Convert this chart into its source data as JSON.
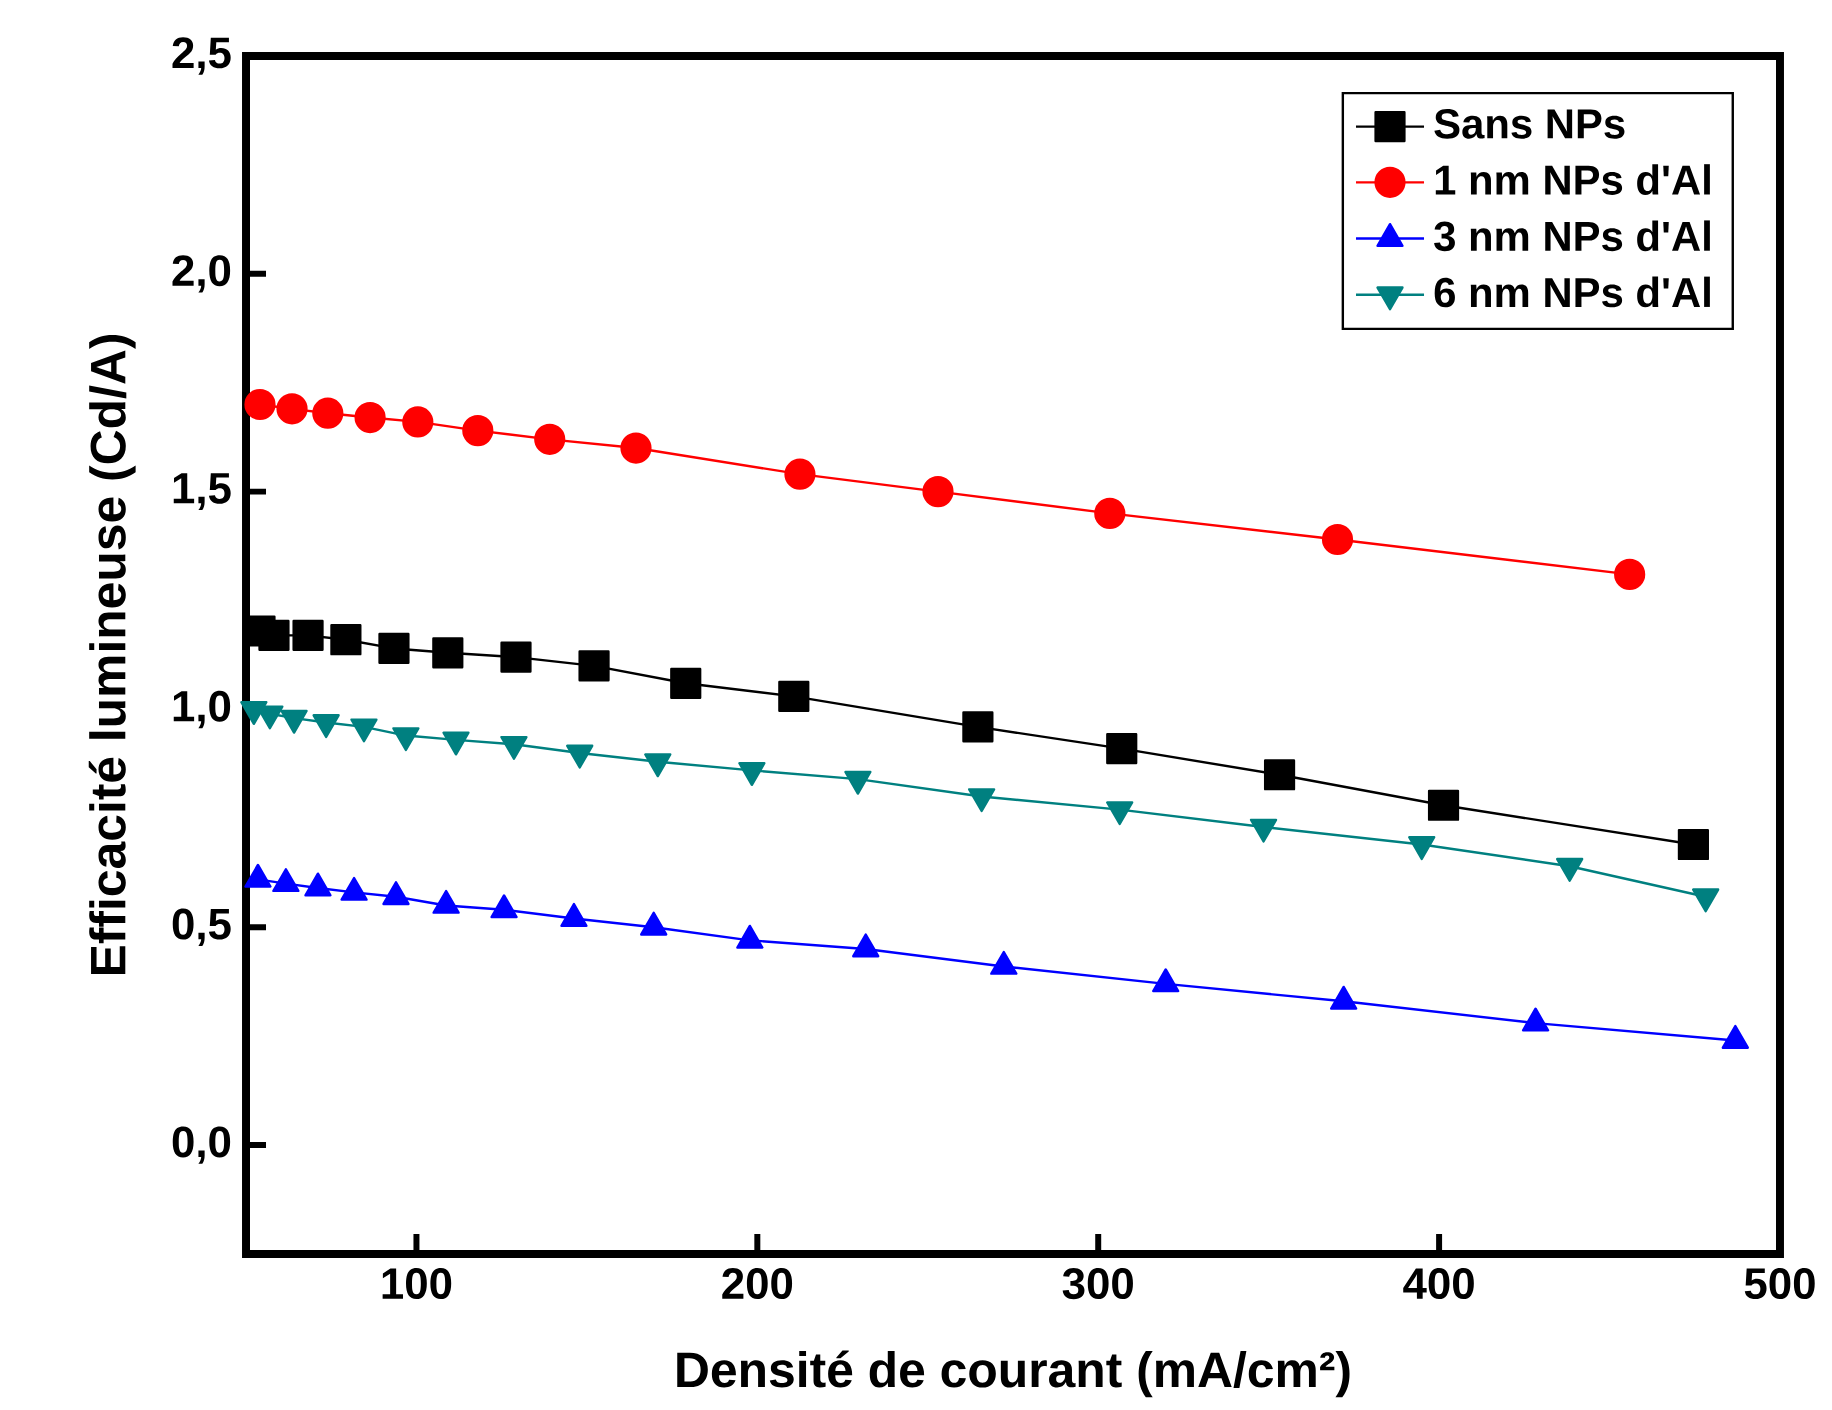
{
  "chart_data": {
    "type": "line",
    "xlabel": "Densité de courant (mA/cm²)",
    "ylabel": "Efficacité lumineuse (Cd/A)",
    "xlim": [
      50,
      500
    ],
    "xticks": [
      100,
      200,
      300,
      400,
      500
    ],
    "ylim": [
      -0.25,
      2.5
    ],
    "yticks": [
      {
        "value": 0,
        "label": "0,0"
      },
      {
        "value": 0.5,
        "label": "0,5"
      },
      {
        "value": 1.0,
        "label": "1,0"
      },
      {
        "value": 1.5,
        "label": "1,5"
      },
      {
        "value": 2.0,
        "label": "2,0"
      },
      {
        "value": 2.5,
        "label": "2,5"
      }
    ],
    "grid": false,
    "legend": "top right",
    "series": [
      {
        "name": "Sans NPs",
        "color": "#000000",
        "marker": "square",
        "x": [
          54.1,
          58.2,
          68.2,
          79.3,
          93.4,
          109.2,
          129.2,
          152.1,
          179.0,
          210.7,
          264.7,
          306.9,
          353.2,
          401.3,
          474.6
        ],
        "values": [
          1.18,
          1.17,
          1.17,
          1.16,
          1.14,
          1.13,
          1.12,
          1.1,
          1.06,
          1.03,
          0.96,
          0.91,
          0.85,
          0.78,
          0.69
        ]
      },
      {
        "name": "1 nm NPs d'Al",
        "color": "#ff0000",
        "marker": "circle",
        "x": [
          54.1,
          63.5,
          74.0,
          86.4,
          100.4,
          118.0,
          139.1,
          164.4,
          212.5,
          253.0,
          303.4,
          370.2,
          455.9
        ],
        "values": [
          1.7,
          1.69,
          1.68,
          1.67,
          1.66,
          1.64,
          1.62,
          1.6,
          1.54,
          1.5,
          1.45,
          1.39,
          1.31
        ]
      },
      {
        "name": "3 nm NPs d'Al",
        "color": "#0000ff",
        "marker": "triangle",
        "x": [
          53.5,
          61.7,
          71.1,
          81.7,
          94.0,
          108.7,
          125.7,
          146.2,
          169.6,
          197.8,
          231.8,
          272.3,
          319.8,
          372.0,
          428.3,
          486.9
        ],
        "values": [
          0.61,
          0.6,
          0.59,
          0.58,
          0.57,
          0.55,
          0.54,
          0.52,
          0.5,
          0.47,
          0.45,
          0.41,
          0.37,
          0.33,
          0.28,
          0.24
        ]
      },
      {
        "name": "6 nm NPs d'Al",
        "color": "#008080",
        "marker": "triangle-down",
        "x": [
          52.3,
          57.0,
          64.1,
          73.5,
          84.6,
          96.9,
          111.6,
          128.6,
          147.9,
          170.8,
          198.4,
          229.5,
          265.8,
          306.3,
          348.5,
          394.9,
          438.3,
          478.2
        ],
        "values": [
          1.0,
          0.99,
          0.98,
          0.97,
          0.96,
          0.94,
          0.93,
          0.92,
          0.9,
          0.88,
          0.86,
          0.84,
          0.8,
          0.77,
          0.73,
          0.69,
          0.64,
          0.57
        ]
      }
    ]
  }
}
